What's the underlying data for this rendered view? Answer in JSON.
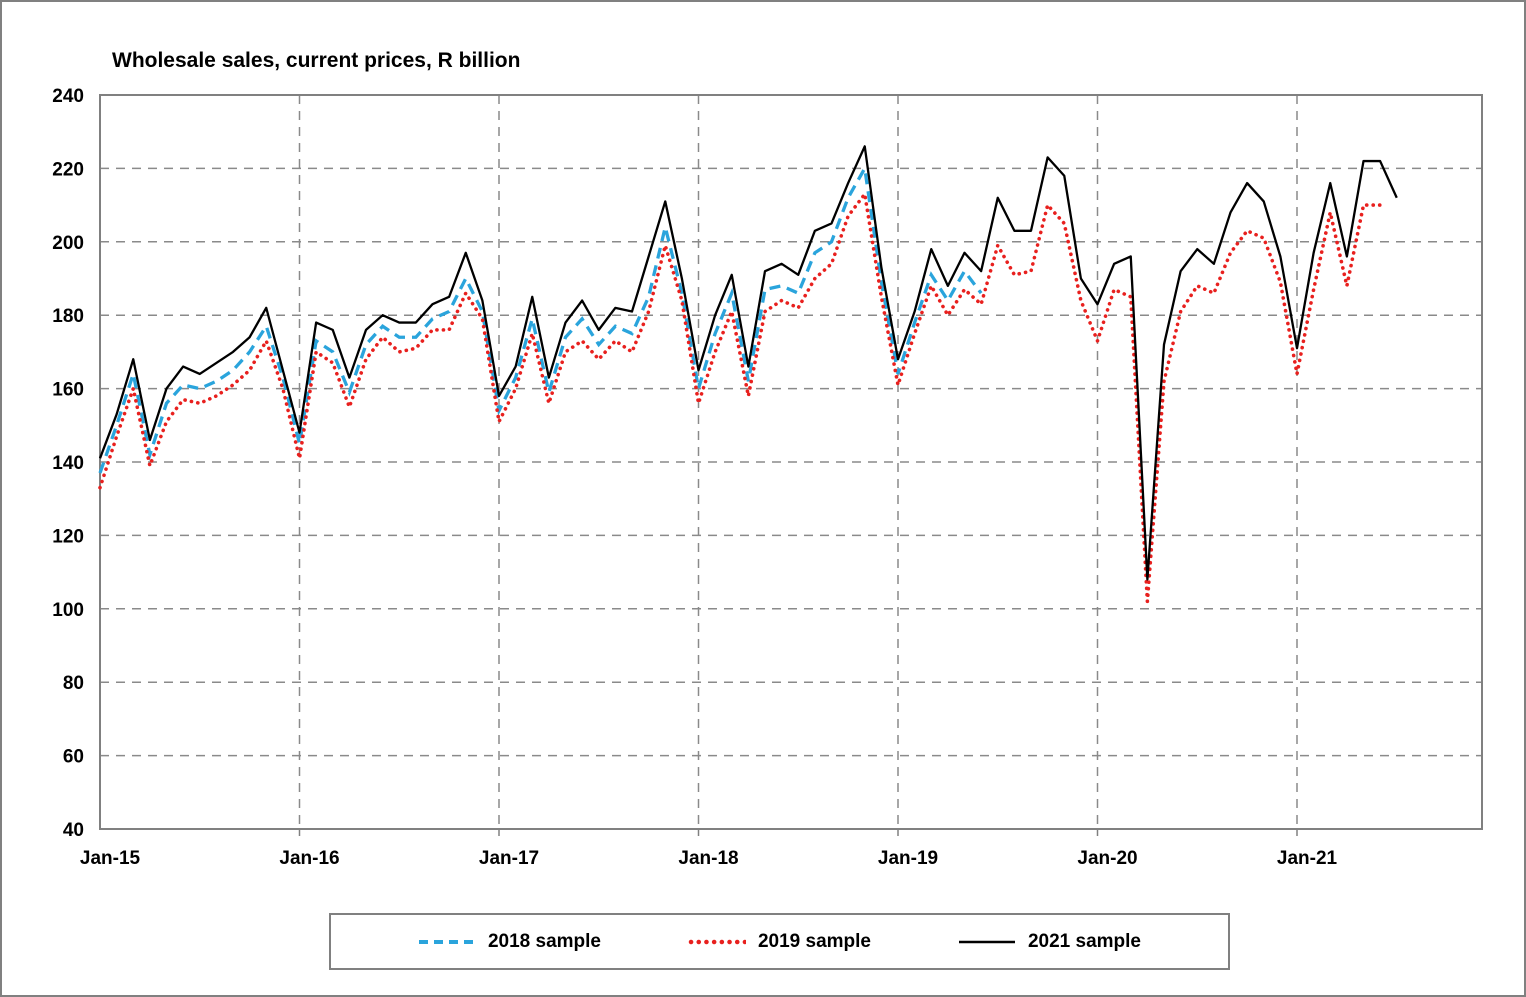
{
  "page": {
    "background": "#ffffff",
    "border_color": "#808080"
  },
  "colors": {
    "grid": "#8a8a8a",
    "axis_frame": "#808080",
    "text": "#000000",
    "series_2018": "#2AA4DC",
    "series_2019": "#E8201E",
    "series_2021": "#000000"
  },
  "legend": {
    "items": [
      {
        "label": "2018 sample"
      },
      {
        "label": "2019 sample"
      },
      {
        "label": "2021 sample"
      }
    ]
  },
  "chart_data": {
    "type": "line",
    "title": "Wholesale sales, current prices, R billion",
    "xlabel": "",
    "ylabel": "",
    "ylim": [
      40,
      240
    ],
    "ytick_step": 20,
    "y_ticks": [
      40,
      60,
      80,
      100,
      120,
      140,
      160,
      180,
      200,
      220,
      240
    ],
    "grid": "dashed gray horizontal and vertical",
    "legend_position": "bottom",
    "x": [
      "Jan-15",
      "Feb-15",
      "Mar-15",
      "Apr-15",
      "May-15",
      "Jun-15",
      "Jul-15",
      "Aug-15",
      "Sep-15",
      "Oct-15",
      "Nov-15",
      "Dec-15",
      "Jan-16",
      "Feb-16",
      "Mar-16",
      "Apr-16",
      "May-16",
      "Jun-16",
      "Jul-16",
      "Aug-16",
      "Sep-16",
      "Oct-16",
      "Nov-16",
      "Dec-16",
      "Jan-17",
      "Feb-17",
      "Mar-17",
      "Apr-17",
      "May-17",
      "Jun-17",
      "Jul-17",
      "Aug-17",
      "Sep-17",
      "Oct-17",
      "Nov-17",
      "Dec-17",
      "Jan-18",
      "Feb-18",
      "Mar-18",
      "Apr-18",
      "May-18",
      "Jun-18",
      "Jul-18",
      "Aug-18",
      "Sep-18",
      "Oct-18",
      "Nov-18",
      "Dec-18",
      "Jan-19",
      "Feb-19",
      "Mar-19",
      "Apr-19",
      "May-19",
      "Jun-19",
      "Jul-19",
      "Aug-19",
      "Sep-19",
      "Oct-19",
      "Nov-19",
      "Dec-19",
      "Jan-20",
      "Feb-20",
      "Mar-20",
      "Apr-20",
      "May-20",
      "Jun-20",
      "Jul-20",
      "Aug-20",
      "Sep-20",
      "Oct-20",
      "Nov-20",
      "Dec-20",
      "Jan-21",
      "Feb-21",
      "Mar-21",
      "Apr-21",
      "May-21",
      "Jun-21",
      "Jul-21"
    ],
    "x_tick_labels": [
      "Jan-15",
      "Jan-16",
      "Jan-17",
      "Jan-18",
      "Jan-19",
      "Jan-20",
      "Jan-21"
    ],
    "x_tick_indices": [
      0,
      12,
      24,
      36,
      48,
      60,
      72
    ],
    "series": [
      {
        "name": "2018 sample",
        "style": "dashed",
        "color": "#2AA4DC",
        "values": [
          137,
          150,
          164,
          142,
          156,
          161,
          160,
          162,
          165,
          170,
          177,
          163,
          145,
          173,
          170,
          159,
          172,
          177,
          174,
          174,
          179,
          181,
          190,
          181,
          154,
          163,
          179,
          159,
          174,
          179,
          172,
          177,
          175,
          185,
          204,
          186,
          160,
          175,
          186,
          162,
          187,
          188,
          186,
          197,
          200,
          212,
          220,
          189,
          164,
          178,
          191,
          184,
          192,
          186,
          null,
          null,
          null,
          null,
          null,
          null,
          null,
          null,
          null,
          null,
          null,
          null,
          null,
          null,
          null,
          null,
          null,
          null,
          null,
          null,
          null,
          null,
          null,
          null,
          null
        ]
      },
      {
        "name": "2019 sample",
        "style": "dotted",
        "color": "#E8201E",
        "values": [
          133,
          147,
          160,
          139,
          151,
          157,
          156,
          158,
          161,
          165,
          173,
          160,
          141,
          170,
          167,
          155,
          168,
          174,
          170,
          171,
          176,
          176,
          186,
          179,
          151,
          160,
          175,
          156,
          170,
          173,
          168,
          173,
          170,
          181,
          199,
          184,
          156,
          170,
          181,
          158,
          181,
          184,
          182,
          190,
          194,
          207,
          213,
          185,
          161,
          175,
          188,
          180,
          187,
          183,
          199,
          191,
          192,
          210,
          205,
          184,
          173,
          187,
          185,
          102,
          162,
          181,
          188,
          186,
          197,
          203,
          201,
          189,
          164,
          187,
          208,
          188,
          210,
          210,
          null
        ]
      },
      {
        "name": "2021 sample",
        "style": "solid",
        "color": "#000000",
        "values": [
          141,
          153,
          168,
          146,
          160,
          166,
          164,
          167,
          170,
          174,
          182,
          165,
          148,
          178,
          176,
          163,
          176,
          180,
          178,
          178,
          183,
          185,
          197,
          184,
          158,
          166,
          185,
          163,
          178,
          184,
          176,
          182,
          181,
          196,
          211,
          190,
          165,
          180,
          191,
          166,
          192,
          194,
          191,
          203,
          205,
          216,
          226,
          193,
          168,
          181,
          198,
          188,
          197,
          192,
          212,
          203,
          203,
          223,
          218,
          190,
          183,
          194,
          196,
          108,
          172,
          192,
          198,
          194,
          208,
          216,
          211,
          196,
          171,
          197,
          216,
          196,
          222,
          222,
          212
        ]
      }
    ]
  }
}
